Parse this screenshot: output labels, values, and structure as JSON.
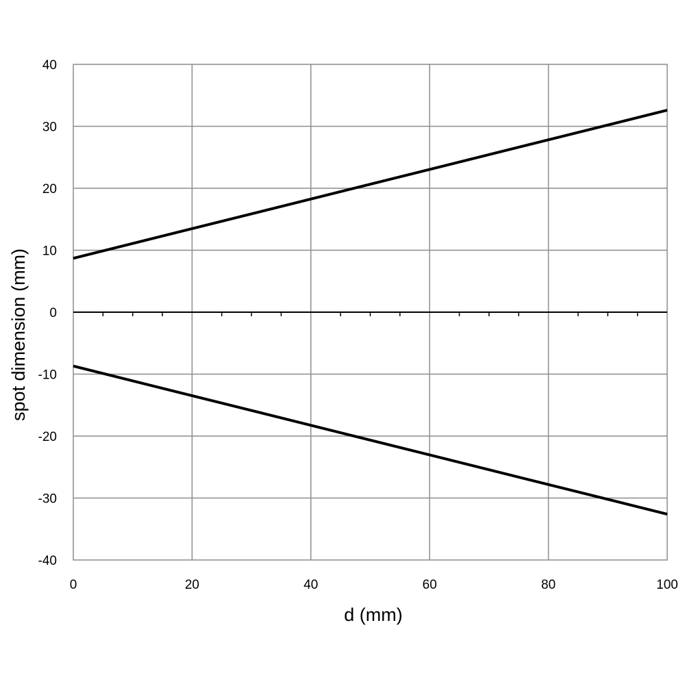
{
  "chart_data": {
    "type": "line",
    "title": "",
    "xlabel": "d (mm)",
    "ylabel": "spot dimension (mm)",
    "xlim": [
      0,
      100
    ],
    "ylim": [
      -40,
      40
    ],
    "x_ticks": [
      0,
      20,
      40,
      60,
      80,
      100
    ],
    "y_ticks": [
      -40,
      -30,
      -20,
      -10,
      0,
      10,
      20,
      30,
      40
    ],
    "x_tick_labels": [
      "0",
      "20",
      "40",
      "60",
      "80",
      "100"
    ],
    "y_tick_labels": [
      "-40",
      "-30",
      "-20",
      "-10",
      "0",
      "10",
      "20",
      "30",
      "40"
    ],
    "x_minor_tick_step": 5,
    "grid": true,
    "legend": "none",
    "series": [
      {
        "x": [
          0,
          100
        ],
        "y": [
          8.7,
          32.6
        ],
        "color": "#000000"
      },
      {
        "x": [
          0,
          100
        ],
        "y": [
          -8.7,
          -32.6
        ],
        "color": "#000000"
      }
    ]
  }
}
